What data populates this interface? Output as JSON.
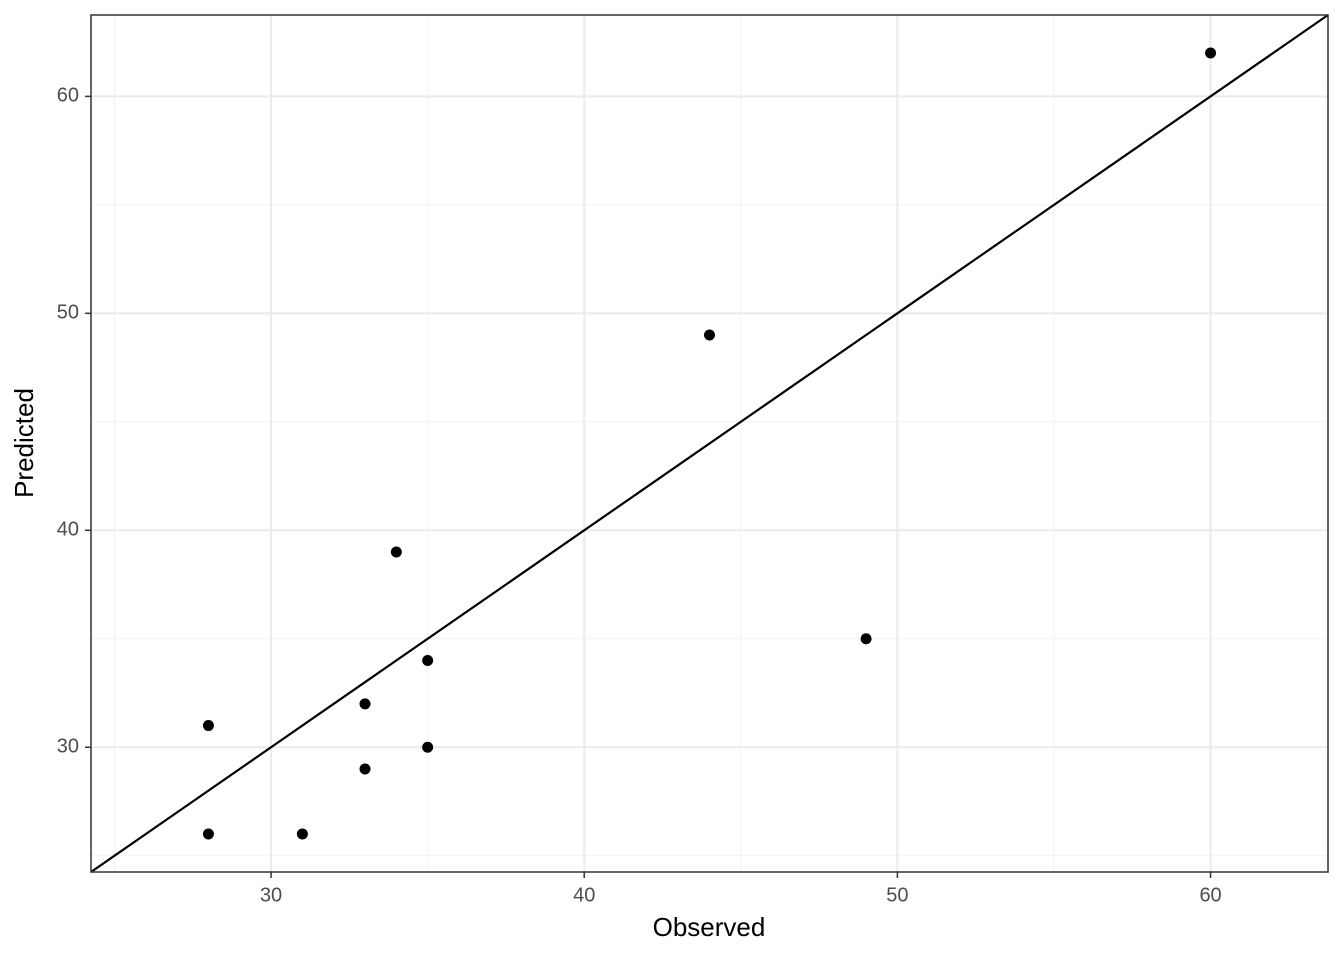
{
  "chart_data": {
    "type": "scatter",
    "x_label": "Observed",
    "y_label": "Predicted",
    "x": [
      28,
      28,
      31,
      33,
      33,
      34,
      35,
      35,
      44,
      49,
      60
    ],
    "values": [
      31,
      26,
      26,
      29,
      32,
      39,
      34,
      30,
      49,
      35,
      62
    ],
    "color": "#000000",
    "xlim": [
      24.25,
      63.75
    ],
    "ylim": [
      24.25,
      63.75
    ],
    "xticks": [
      30,
      40,
      50,
      60
    ],
    "yticks": [
      30,
      40,
      50,
      60
    ],
    "x_minor_ticks": [
      25,
      35,
      45,
      55
    ],
    "y_minor_ticks": [
      25,
      35,
      45,
      55
    ],
    "grid": true,
    "identity_line": true
  }
}
